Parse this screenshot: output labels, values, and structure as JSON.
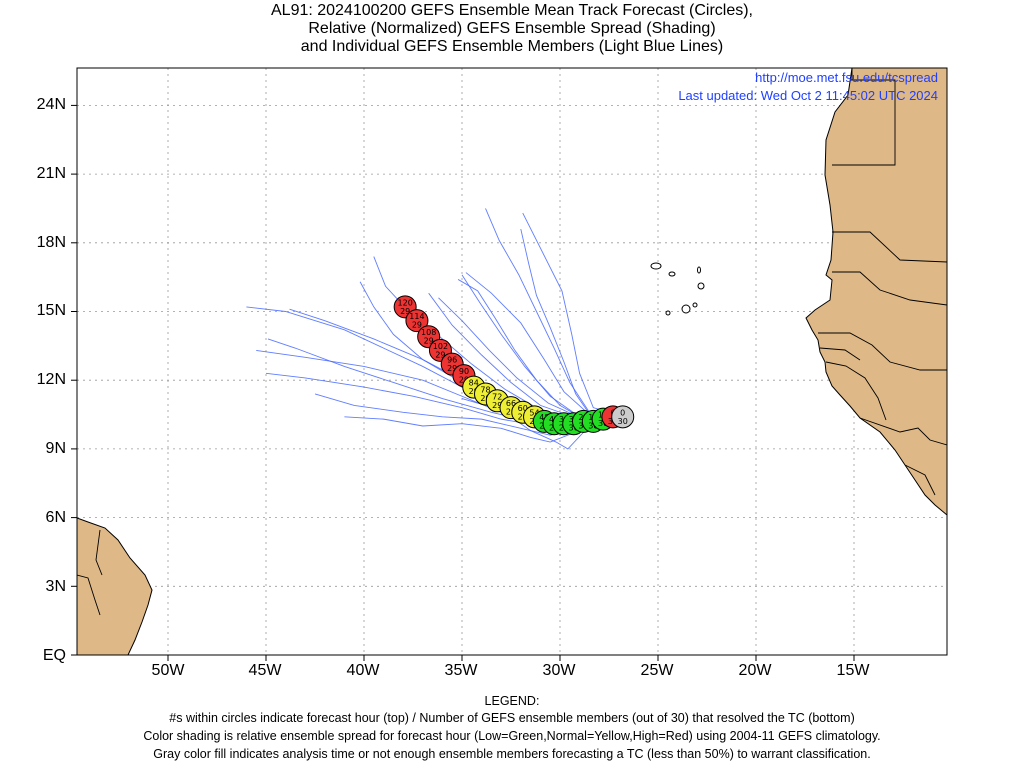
{
  "title": {
    "line1": "AL91: 2024100200 GEFS Ensemble Mean Track Forecast (Circles),",
    "line2": "Relative (Normalized) GEFS Ensemble Spread (Shading)",
    "line3": "and Individual GEFS Ensemble Members (Light Blue Lines)"
  },
  "credit": {
    "url": "http://moe.met.fsu.edu/tcspread",
    "updated": "Last updated: Wed Oct 2 11:45:02 UTC 2024"
  },
  "axes": {
    "lat_labels": [
      "24N",
      "21N",
      "18N",
      "15N",
      "12N",
      "9N",
      "6N",
      "3N",
      "EQ"
    ],
    "lon_labels": [
      "50W",
      "45W",
      "40W",
      "35W",
      "30W",
      "25W",
      "20W",
      "15W"
    ]
  },
  "legend": {
    "heading": "LEGEND:",
    "line1": "#s within circles indicate forecast hour (top) / Number of GEFS ensemble members (out of 30) that resolved the TC (bottom)",
    "line2": "Color shading is relative ensemble spread for forecast hour (Low=Green,Normal=Yellow,High=Red) using 2004-11 GEFS climatology.",
    "line3": "Gray color fill indicates analysis time or not enough ensemble members forecasting a TC (less than 50%) to warrant classification."
  },
  "colors": {
    "land": "#deb887",
    "member_track": "#4466ff",
    "low_spread": "#22dd22",
    "normal_spread": "#eeee33",
    "high_spread": "#ee3333",
    "analysis": "#cccccc",
    "credit_text": "#1f3fff"
  },
  "track": [
    {
      "hour": "0",
      "members": "30",
      "lon": -26.8,
      "lat": 10.4,
      "spread": "gray"
    },
    {
      "hour": "6",
      "members": "30",
      "lon": -27.3,
      "lat": 10.4,
      "spread": "high"
    },
    {
      "hour": "12",
      "members": "30",
      "lon": -27.8,
      "lat": 10.3,
      "spread": "low"
    },
    {
      "hour": "18",
      "members": "30",
      "lon": -28.3,
      "lat": 10.2,
      "spread": "low"
    },
    {
      "hour": "24",
      "members": "30",
      "lon": -28.8,
      "lat": 10.2,
      "spread": "low"
    },
    {
      "hour": "30",
      "members": "30",
      "lon": -29.3,
      "lat": 10.1,
      "spread": "low"
    },
    {
      "hour": "36",
      "members": "29",
      "lon": -29.8,
      "lat": 10.1,
      "spread": "low"
    },
    {
      "hour": "42",
      "members": "29",
      "lon": -30.3,
      "lat": 10.1,
      "spread": "low"
    },
    {
      "hour": "48",
      "members": "29",
      "lon": -30.8,
      "lat": 10.2,
      "spread": "low"
    },
    {
      "hour": "54",
      "members": "29",
      "lon": -31.3,
      "lat": 10.4,
      "spread": "normal"
    },
    {
      "hour": "60",
      "members": "29",
      "lon": -31.9,
      "lat": 10.6,
      "spread": "normal"
    },
    {
      "hour": "66",
      "members": "29",
      "lon": -32.5,
      "lat": 10.8,
      "spread": "normal"
    },
    {
      "hour": "72",
      "members": "29",
      "lon": -33.2,
      "lat": 11.1,
      "spread": "normal"
    },
    {
      "hour": "78",
      "members": "29",
      "lon": -33.8,
      "lat": 11.4,
      "spread": "normal"
    },
    {
      "hour": "84",
      "members": "29",
      "lon": -34.4,
      "lat": 11.7,
      "spread": "normal"
    },
    {
      "hour": "90",
      "members": "29",
      "lon": -34.9,
      "lat": 12.2,
      "spread": "high"
    },
    {
      "hour": "96",
      "members": "29",
      "lon": -35.5,
      "lat": 12.7,
      "spread": "high"
    },
    {
      "hour": "102",
      "members": "29",
      "lon": -36.1,
      "lat": 13.3,
      "spread": "high"
    },
    {
      "hour": "108",
      "members": "29",
      "lon": -36.7,
      "lat": 13.9,
      "spread": "high"
    },
    {
      "hour": "114",
      "members": "29",
      "lon": -37.3,
      "lat": 14.6,
      "spread": "high"
    },
    {
      "hour": "120",
      "members": "29",
      "lon": -37.9,
      "lat": 15.2,
      "spread": "high"
    }
  ],
  "members_tracks": [
    [
      [
        -26.7,
        10.4
      ],
      [
        -29,
        10.2
      ],
      [
        -31,
        10.4
      ],
      [
        -33,
        10.9
      ],
      [
        -35,
        11.7
      ],
      [
        -37,
        12.6
      ],
      [
        -39,
        13.4
      ],
      [
        -41,
        14.2
      ],
      [
        -44,
        15.0
      ],
      [
        -46,
        15.2
      ]
    ],
    [
      [
        -26.7,
        10.4
      ],
      [
        -29,
        10.1
      ],
      [
        -31,
        10.2
      ],
      [
        -33,
        10.6
      ],
      [
        -35,
        11.3
      ],
      [
        -37,
        12.0
      ],
      [
        -40,
        12.6
      ],
      [
        -43,
        13.0
      ],
      [
        -45.5,
        13.3
      ]
    ],
    [
      [
        -26.7,
        10.4
      ],
      [
        -29,
        10.0
      ],
      [
        -31,
        10.0
      ],
      [
        -33,
        10.3
      ],
      [
        -35,
        10.8
      ],
      [
        -37.5,
        11.3
      ],
      [
        -40,
        11.7
      ],
      [
        -43,
        12.1
      ],
      [
        -45,
        12.3
      ]
    ],
    [
      [
        -26.7,
        10.4
      ],
      [
        -29,
        10.1
      ],
      [
        -31,
        10.3
      ],
      [
        -33,
        11.0
      ],
      [
        -35,
        11.9
      ],
      [
        -37,
        12.9
      ],
      [
        -38.5,
        14.0
      ],
      [
        -39.5,
        15.2
      ],
      [
        -40.2,
        16.3
      ]
    ],
    [
      [
        -26.7,
        10.4
      ],
      [
        -29,
        10.2
      ],
      [
        -31,
        10.6
      ],
      [
        -33,
        11.3
      ],
      [
        -34.5,
        12.3
      ],
      [
        -36,
        13.6
      ],
      [
        -37.5,
        14.8
      ],
      [
        -38.9,
        16.1
      ],
      [
        -39.5,
        17.4
      ]
    ],
    [
      [
        -26.7,
        10.4
      ],
      [
        -29,
        10.3
      ],
      [
        -31,
        10.9
      ],
      [
        -32.5,
        11.9
      ],
      [
        -34,
        13.1
      ],
      [
        -35.5,
        14.4
      ],
      [
        -36.7,
        15.8
      ]
    ],
    [
      [
        -26.7,
        10.4
      ],
      [
        -29,
        10.4
      ],
      [
        -30.5,
        11.3
      ],
      [
        -31.8,
        12.6
      ],
      [
        -33,
        14.0
      ],
      [
        -34.1,
        15.4
      ],
      [
        -35,
        16.6
      ]
    ],
    [
      [
        -26.7,
        10.4
      ],
      [
        -28.5,
        10.6
      ],
      [
        -29.5,
        11.9
      ],
      [
        -30.3,
        13.4
      ],
      [
        -31.2,
        15.0
      ],
      [
        -32.1,
        16.6
      ],
      [
        -33.1,
        18.1
      ],
      [
        -33.8,
        19.5
      ]
    ],
    [
      [
        -26.7,
        10.4
      ],
      [
        -28.3,
        10.8
      ],
      [
        -29,
        12.3
      ],
      [
        -29.4,
        14.0
      ],
      [
        -29.9,
        15.9
      ],
      [
        -30.9,
        17.6
      ],
      [
        -31.9,
        19.3
      ]
    ],
    [
      [
        -26.7,
        10.4
      ],
      [
        -28.5,
        10.5
      ],
      [
        -29.8,
        11.5
      ],
      [
        -30.8,
        12.9
      ],
      [
        -32,
        14.5
      ],
      [
        -33.5,
        15.8
      ],
      [
        -34.8,
        16.7
      ]
    ],
    [
      [
        -26.7,
        10.4
      ],
      [
        -29,
        9.9
      ],
      [
        -30.5,
        9.6
      ],
      [
        -32,
        9.9
      ],
      [
        -34,
        10.3
      ],
      [
        -36,
        10.4
      ],
      [
        -38,
        10.6
      ],
      [
        -40.5,
        10.9
      ],
      [
        -42.5,
        11.4
      ]
    ],
    [
      [
        -26.7,
        10.4
      ],
      [
        -29,
        9.8
      ],
      [
        -30.5,
        9.3
      ],
      [
        -31.5,
        9.5
      ],
      [
        -33,
        9.9
      ],
      [
        -35,
        10.1
      ],
      [
        -37,
        10.0
      ],
      [
        -39,
        10.3
      ],
      [
        -41,
        10.4
      ]
    ],
    [
      [
        -26.7,
        10.4
      ],
      [
        -28.5,
        10.0
      ],
      [
        -29.6,
        9.0
      ],
      [
        -30.2,
        9.3
      ],
      [
        -31.5,
        9.8
      ],
      [
        -33,
        10.7
      ],
      [
        -35,
        11.2
      ]
    ],
    [
      [
        -26.7,
        10.4
      ],
      [
        -29,
        10.1
      ],
      [
        -31,
        10.5
      ],
      [
        -33,
        11.2
      ],
      [
        -35,
        12.0
      ],
      [
        -37,
        12.9
      ],
      [
        -39.5,
        13.8
      ],
      [
        -42,
        14.6
      ],
      [
        -43.8,
        15.1
      ]
    ],
    [
      [
        -26.7,
        10.4
      ],
      [
        -29,
        10.2
      ],
      [
        -31,
        10.7
      ],
      [
        -32.8,
        11.6
      ],
      [
        -34.5,
        12.7
      ],
      [
        -36,
        13.8
      ],
      [
        -37.5,
        14.9
      ]
    ],
    [
      [
        -26.7,
        10.4
      ],
      [
        -28.8,
        10.3
      ],
      [
        -30.6,
        11.0
      ],
      [
        -32.2,
        12.1
      ],
      [
        -33.6,
        13.3
      ],
      [
        -35,
        14.6
      ],
      [
        -36.2,
        15.6
      ]
    ],
    [
      [
        -26.7,
        10.4
      ],
      [
        -29,
        10.0
      ],
      [
        -31,
        10.1
      ],
      [
        -33.5,
        10.6
      ],
      [
        -36,
        11.2
      ],
      [
        -38.5,
        11.9
      ],
      [
        -41,
        12.6
      ],
      [
        -43.5,
        13.4
      ],
      [
        -44.9,
        13.8
      ]
    ],
    [
      [
        -26.7,
        10.4
      ],
      [
        -28.6,
        10.2
      ],
      [
        -30,
        10.9
      ],
      [
        -31.2,
        12.0
      ],
      [
        -32.3,
        13.3
      ],
      [
        -33.3,
        14.7
      ],
      [
        -34.2,
        15.9
      ],
      [
        -35.2,
        16.4
      ]
    ],
    [
      [
        -26.7,
        10.4
      ],
      [
        -28.4,
        10.4
      ],
      [
        -29.2,
        11.4
      ],
      [
        -29.8,
        12.8
      ],
      [
        -30.5,
        14.3
      ],
      [
        -31.2,
        15.7
      ],
      [
        -31.6,
        17.1
      ],
      [
        -32,
        18.6
      ]
    ]
  ]
}
